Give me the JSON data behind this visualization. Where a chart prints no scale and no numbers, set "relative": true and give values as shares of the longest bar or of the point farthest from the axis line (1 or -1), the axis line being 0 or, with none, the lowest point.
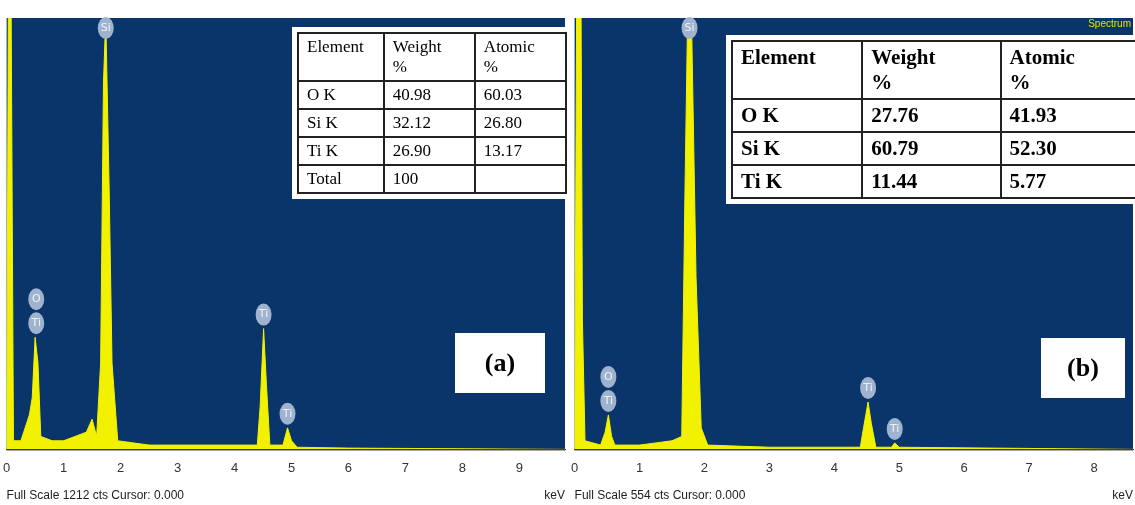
{
  "chart_data": [
    {
      "type": "area",
      "relative": true,
      "xlabel": "keV",
      "xlim": [
        0,
        9.8
      ],
      "xticks": [
        0,
        1,
        2,
        3,
        4,
        5,
        6,
        7,
        8,
        9
      ],
      "grid": false,
      "legend": false,
      "x": [
        0,
        0.03,
        0.08,
        0.12,
        0.25,
        0.3,
        0.4,
        0.45,
        0.5,
        0.55,
        0.6,
        0.8,
        1.0,
        1.2,
        1.4,
        1.5,
        1.58,
        1.65,
        1.7,
        1.74,
        1.8,
        1.85,
        1.95,
        2.5,
        3.5,
        4.4,
        4.45,
        4.51,
        4.56,
        4.62,
        4.85,
        4.93,
        5.0,
        5.1,
        6,
        9.8
      ],
      "series": [
        {
          "color": "#f2f200",
          "values": [
            0,
            1,
            1,
            0.02,
            0.02,
            0.04,
            0.08,
            0.12,
            0.26,
            0.2,
            0.03,
            0.02,
            0.02,
            0.03,
            0.04,
            0.07,
            0.03,
            0.2,
            0.85,
            1,
            0.6,
            0.2,
            0.02,
            0.01,
            0.01,
            0.01,
            0.1,
            0.28,
            0.15,
            0.01,
            0.01,
            0.05,
            0.02,
            0.005,
            0.003,
            0
          ]
        }
      ],
      "annotations": [
        "Full Scale 1212 cts Cursor: 0.000",
        "(a)",
        "Element",
        "Weight %",
        "Atomic %",
        "O K",
        "40.98",
        "60.03",
        "Si K",
        "32.12",
        "26.80",
        "Ti K",
        "26.90",
        "13.17",
        "Total",
        "100",
        {
          "text": "Si",
          "x": 1.74,
          "y": 1
        },
        {
          "text": "Ti",
          "x": 0.52,
          "y": 0.26
        },
        {
          "text": "O",
          "x": 0.52,
          "y": 0.26
        },
        {
          "text": "Ti",
          "x": 4.51,
          "y": 0.28
        },
        {
          "text": "Ti",
          "x": 4.93,
          "y": 0.05
        }
      ]
    },
    {
      "type": "area",
      "relative": true,
      "title": "Spectrum",
      "xlabel": "keV",
      "xlim": [
        0,
        8.6
      ],
      "xticks": [
        0,
        1,
        2,
        3,
        4,
        5,
        6,
        7,
        8
      ],
      "grid": false,
      "legend": false,
      "x": [
        0,
        0.03,
        0.1,
        0.12,
        0.16,
        0.4,
        0.47,
        0.52,
        0.57,
        0.62,
        1.0,
        1.25,
        1.5,
        1.65,
        1.7,
        1.74,
        1.8,
        1.87,
        1.95,
        2.05,
        3,
        4.4,
        4.45,
        4.52,
        4.57,
        4.64,
        4.88,
        4.93,
        5.0,
        8.6
      ],
      "series": [
        {
          "color": "#f2f200",
          "values": [
            0,
            1,
            1,
            0.3,
            0.02,
            0.01,
            0.04,
            0.08,
            0.03,
            0.01,
            0.01,
            0.015,
            0.02,
            0.03,
            0.6,
            1,
            1,
            0.4,
            0.05,
            0.01,
            0.005,
            0.005,
            0.05,
            0.11,
            0.06,
            0.005,
            0.005,
            0.015,
            0.005,
            0
          ]
        }
      ],
      "annotations": [
        "Full Scale 554 cts Cursor: 0.000",
        "(b)",
        "Element",
        "Weight %",
        "Atomic %",
        "O K",
        "27.76",
        "41.93",
        "Si K",
        "60.79",
        "52.30",
        "Ti K",
        "11.44",
        "5.77",
        {
          "text": "Si",
          "x": 1.77,
          "y": 1
        },
        {
          "text": "Ti",
          "x": 0.52,
          "y": 0.08
        },
        {
          "text": "O",
          "x": 0.52,
          "y": 0.08
        },
        {
          "text": "Ti",
          "x": 4.52,
          "y": 0.11
        },
        {
          "text": "Ti",
          "x": 4.93,
          "y": 0.015
        }
      ]
    }
  ]
}
